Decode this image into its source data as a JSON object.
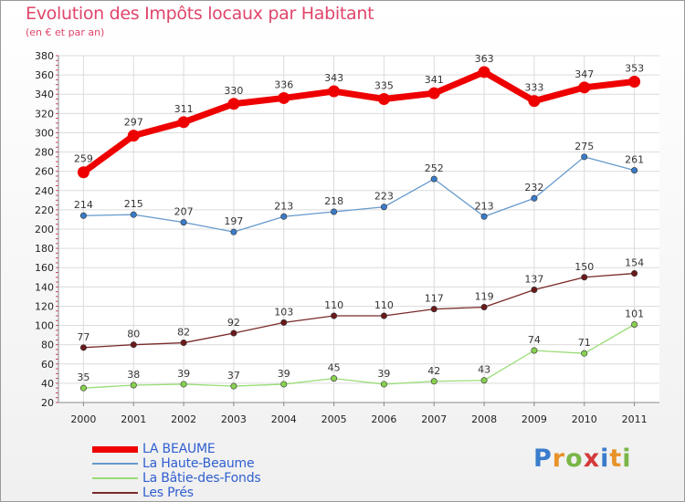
{
  "chart_data": {
    "type": "line",
    "title": "Evolution des Impôts locaux par Habitant",
    "subtitle": "(en € et par an)",
    "categories": [
      "2000",
      "2001",
      "2002",
      "2003",
      "2004",
      "2005",
      "2006",
      "2007",
      "2008",
      "2009",
      "2010",
      "2011"
    ],
    "ylim": [
      20,
      380
    ],
    "yticks": [
      20,
      40,
      60,
      80,
      100,
      120,
      140,
      160,
      180,
      200,
      220,
      240,
      260,
      280,
      300,
      320,
      340,
      360,
      380
    ],
    "grid": true,
    "legend_position": "bottom-left",
    "series": [
      {
        "name": "LA BEAUME",
        "color": "#ee0000",
        "emphasis": true,
        "values": [
          259,
          297,
          311,
          330,
          336,
          343,
          335,
          341,
          363,
          333,
          347,
          353
        ]
      },
      {
        "name": "La Haute-Beaume",
        "color": "#6699cc",
        "marker": "#3a7cc8",
        "emphasis": false,
        "values": [
          214,
          215,
          207,
          197,
          213,
          218,
          223,
          252,
          213,
          232,
          275,
          261
        ]
      },
      {
        "name": "La Bâtie-des-Fonds",
        "color": "#99dd77",
        "marker": "#88d050",
        "emphasis": false,
        "values": [
          35,
          38,
          39,
          37,
          39,
          45,
          39,
          42,
          43,
          74,
          71,
          101
        ]
      },
      {
        "name": "Les Prés",
        "color": "#7a2a2a",
        "marker": "#6a1a1a",
        "emphasis": false,
        "values": [
          77,
          80,
          82,
          92,
          103,
          110,
          110,
          117,
          119,
          137,
          150,
          154
        ]
      }
    ]
  },
  "brand": {
    "letters": [
      "P",
      "r",
      "o",
      "x",
      "i",
      "t",
      "i"
    ],
    "colors": [
      "#3a7ccc",
      "#e8922a",
      "#7ab648",
      "#d43a3a",
      "#3a7ccc",
      "#e8922a",
      "#7ab648"
    ]
  }
}
